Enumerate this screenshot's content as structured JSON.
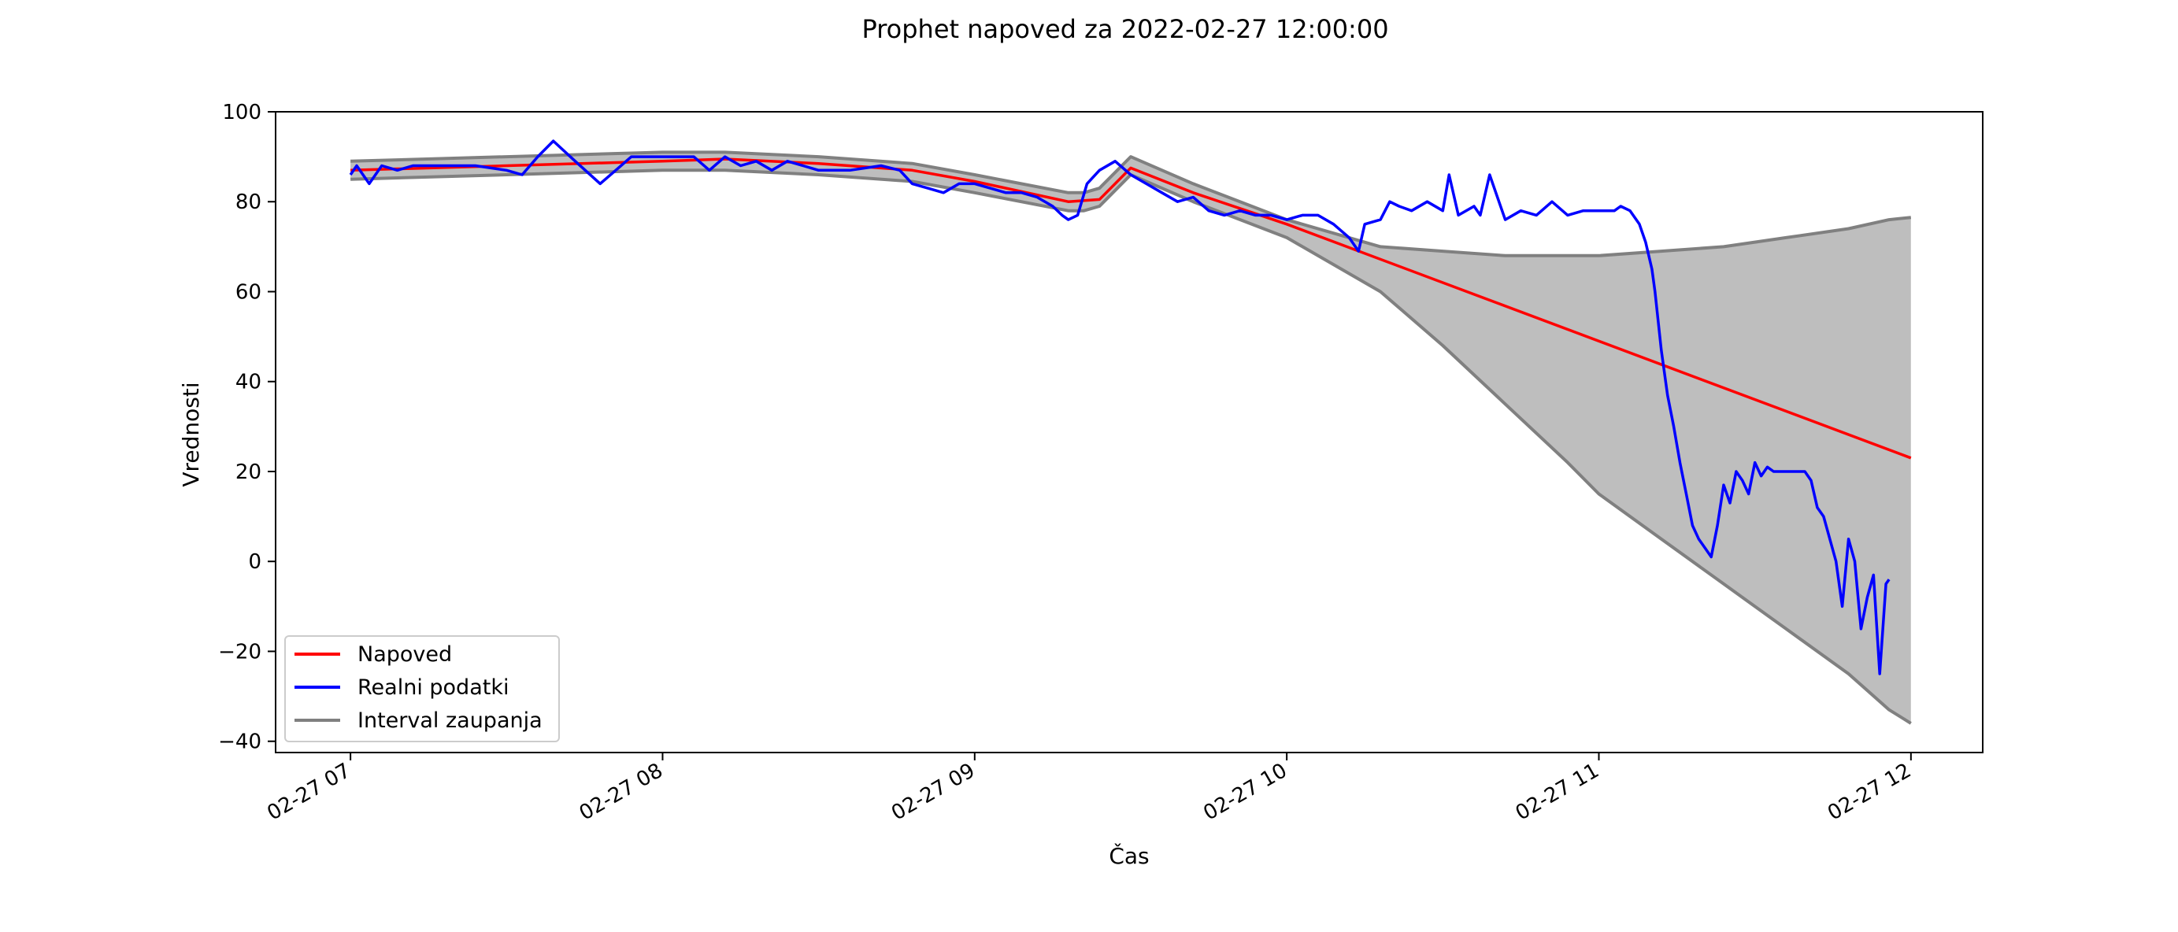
{
  "chart_data": {
    "type": "line",
    "title": "Prophet napoved za 2022-02-27 12:00:00",
    "xlabel": "Čas",
    "ylabel": "Vrednosti",
    "x_ticks": [
      {
        "value": 7,
        "label": "02-27 07"
      },
      {
        "value": 8,
        "label": "02-27 08"
      },
      {
        "value": 9,
        "label": "02-27 09"
      },
      {
        "value": 10,
        "label": "02-27 10"
      },
      {
        "value": 11,
        "label": "02-27 11"
      },
      {
        "value": 12,
        "label": "02-27 12"
      }
    ],
    "y_ticks": [
      {
        "value": -40,
        "label": "−40"
      },
      {
        "value": -20,
        "label": "−20"
      },
      {
        "value": 0,
        "label": "0"
      },
      {
        "value": 20,
        "label": "20"
      },
      {
        "value": 40,
        "label": "40"
      },
      {
        "value": 60,
        "label": "60"
      },
      {
        "value": 80,
        "label": "80"
      },
      {
        "value": 100,
        "label": "100"
      }
    ],
    "xlim": [
      6.76,
      12.23
    ],
    "ylim": [
      -42.5,
      100
    ],
    "grid": false,
    "legend_position": "lower-left",
    "colors": {
      "napoved": "#ff0000",
      "realni": "#0000ff",
      "interval_line": "#808080",
      "interval_fill": "#bebebe"
    },
    "series": [
      {
        "name": "Napoved",
        "x": [
          7.0,
          7.5,
          8.0,
          8.2,
          8.5,
          8.8,
          9.0,
          9.3,
          9.4,
          9.5,
          9.7,
          10.0,
          12.0
        ],
        "y": [
          87,
          88,
          89,
          89.5,
          88.5,
          87,
          84.5,
          80,
          80.5,
          87.5,
          82,
          75,
          23
        ]
      },
      {
        "name": "Realni podatki",
        "x": [
          7.0,
          7.02,
          7.06,
          7.1,
          7.15,
          7.2,
          7.3,
          7.4,
          7.5,
          7.55,
          7.6,
          7.65,
          7.72,
          7.8,
          7.85,
          7.9,
          7.95,
          8.0,
          8.1,
          8.15,
          8.2,
          8.25,
          8.3,
          8.35,
          8.4,
          8.45,
          8.5,
          8.6,
          8.7,
          8.76,
          8.8,
          8.85,
          8.9,
          8.95,
          9.0,
          9.05,
          9.1,
          9.15,
          9.2,
          9.25,
          9.28,
          9.3,
          9.33,
          9.36,
          9.4,
          9.45,
          9.5,
          9.55,
          9.6,
          9.65,
          9.7,
          9.75,
          9.8,
          9.85,
          9.9,
          9.95,
          10.0,
          10.05,
          10.1,
          10.15,
          10.2,
          10.23,
          10.25,
          10.3,
          10.33,
          10.36,
          10.4,
          10.45,
          10.5,
          10.52,
          10.55,
          10.6,
          10.62,
          10.65,
          10.7,
          10.75,
          10.8,
          10.85,
          10.9,
          10.95,
          11.0,
          11.05,
          11.07,
          11.1,
          11.13,
          11.15,
          11.17,
          11.18,
          11.2,
          11.22,
          11.24,
          11.26,
          11.28,
          11.3,
          11.32,
          11.34,
          11.36,
          11.38,
          11.4,
          11.42,
          11.44,
          11.46,
          11.48,
          11.5,
          11.52,
          11.54,
          11.56,
          11.58,
          11.6,
          11.62,
          11.64,
          11.66,
          11.68,
          11.7,
          11.72,
          11.74,
          11.76,
          11.78,
          11.8,
          11.82,
          11.84,
          11.86,
          11.88,
          11.9,
          11.92,
          11.93
        ],
        "y": [
          86,
          88,
          84,
          88,
          87,
          88,
          88,
          88,
          87,
          86,
          90,
          93.5,
          89,
          84,
          87,
          90,
          90,
          90,
          90,
          87,
          90,
          88,
          89,
          87,
          89,
          88,
          87,
          87,
          88,
          87,
          84,
          83,
          82,
          84,
          84,
          83,
          82,
          82,
          81,
          79,
          77,
          76,
          77,
          84,
          87,
          89,
          86,
          84,
          82,
          80,
          81,
          78,
          77,
          78,
          77,
          77,
          76,
          77,
          77,
          75,
          72,
          69,
          75,
          76,
          80,
          79,
          78,
          80,
          78,
          86,
          77,
          79,
          77,
          86,
          76,
          78,
          77,
          80,
          77,
          78,
          78,
          78,
          79,
          78,
          75,
          71,
          65,
          60,
          47,
          37,
          30,
          22,
          15,
          8,
          5,
          3,
          1,
          8,
          17,
          13,
          20,
          18,
          15,
          22,
          19,
          21,
          20,
          20,
          20,
          20,
          20,
          20,
          18,
          12,
          10,
          5,
          0,
          -10,
          5,
          0,
          -15,
          -8,
          -3,
          -25,
          -5,
          -4
        ],
        "line_style": "solid"
      },
      {
        "name": "Interval zaupanja",
        "x": [
          7.0,
          7.5,
          8.0,
          8.2,
          8.5,
          8.8,
          9.0,
          9.3,
          9.35,
          9.4,
          9.5,
          9.7,
          10.0,
          10.3,
          10.5,
          10.7,
          10.9,
          11.0,
          11.2,
          11.4,
          11.6,
          11.8,
          11.93,
          12.0
        ],
        "y_upper": [
          89,
          90,
          91,
          91,
          90,
          88.5,
          86,
          82,
          82,
          83,
          90,
          84,
          76,
          70,
          69,
          68,
          68,
          68,
          69,
          70,
          72,
          74,
          76,
          76.5
        ],
        "y_lower": [
          85,
          86,
          87,
          87,
          86,
          84.5,
          82,
          78,
          78,
          79,
          86,
          80,
          72,
          60,
          48,
          35,
          22,
          15,
          5,
          -5,
          -15,
          -25,
          -33,
          -36
        ]
      }
    ]
  }
}
